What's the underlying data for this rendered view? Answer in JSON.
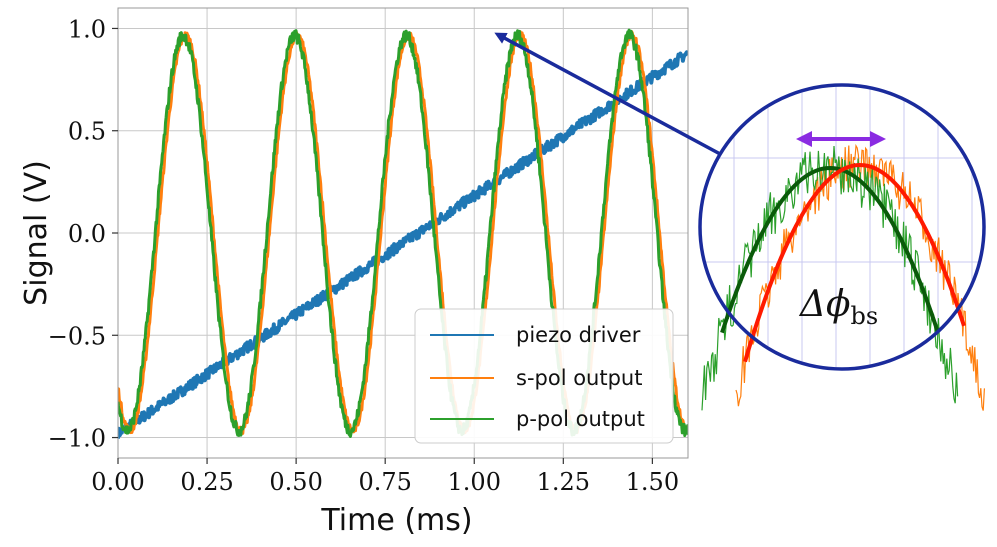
{
  "chart_data": {
    "type": "line",
    "xlabel": "Time (ms)",
    "ylabel": "Signal (V)",
    "xlim": [
      0.0,
      1.6
    ],
    "ylim": [
      -1.1,
      1.1
    ],
    "grid": true,
    "legend_position": "bottom-right",
    "x_ticks": [
      0.0,
      0.25,
      0.5,
      0.75,
      1.0,
      1.25,
      1.5
    ],
    "x_tick_labels": [
      "0.00",
      "0.25",
      "0.50",
      "0.75",
      "1.00",
      "1.25",
      "1.50"
    ],
    "y_ticks": [
      -1.0,
      -0.5,
      0.0,
      0.5,
      1.0
    ],
    "y_tick_labels": [
      "−1.0",
      "−0.5",
      "0.0",
      "0.5",
      "1.0"
    ],
    "series": [
      {
        "name": "piezo driver",
        "color": "#1f77b4",
        "kind": "ramp",
        "start": [
          0.0,
          -0.98
        ],
        "end": [
          1.6,
          0.88
        ],
        "noise": 0.025
      },
      {
        "name": "s-pol output",
        "color": "#ff7f0e",
        "kind": "sine",
        "period": 0.313,
        "peak_x": 0.19,
        "amplitude": 0.965,
        "noise": 0.02
      },
      {
        "name": "p-pol output",
        "color": "#2ca02c",
        "kind": "sine",
        "period": 0.313,
        "peak_x": 0.183,
        "amplitude": 0.965,
        "noise": 0.03
      }
    ],
    "annotation": {
      "label_main": "Δϕ",
      "label_sub": "bs",
      "arrow_color": "#1a2b9c",
      "arrow_target": [
        1.06,
        0.99
      ],
      "inset_fit_colors": [
        "#0a5a0a",
        "#ff1a00"
      ],
      "phase_arrow_color": "#8a2be2"
    }
  }
}
